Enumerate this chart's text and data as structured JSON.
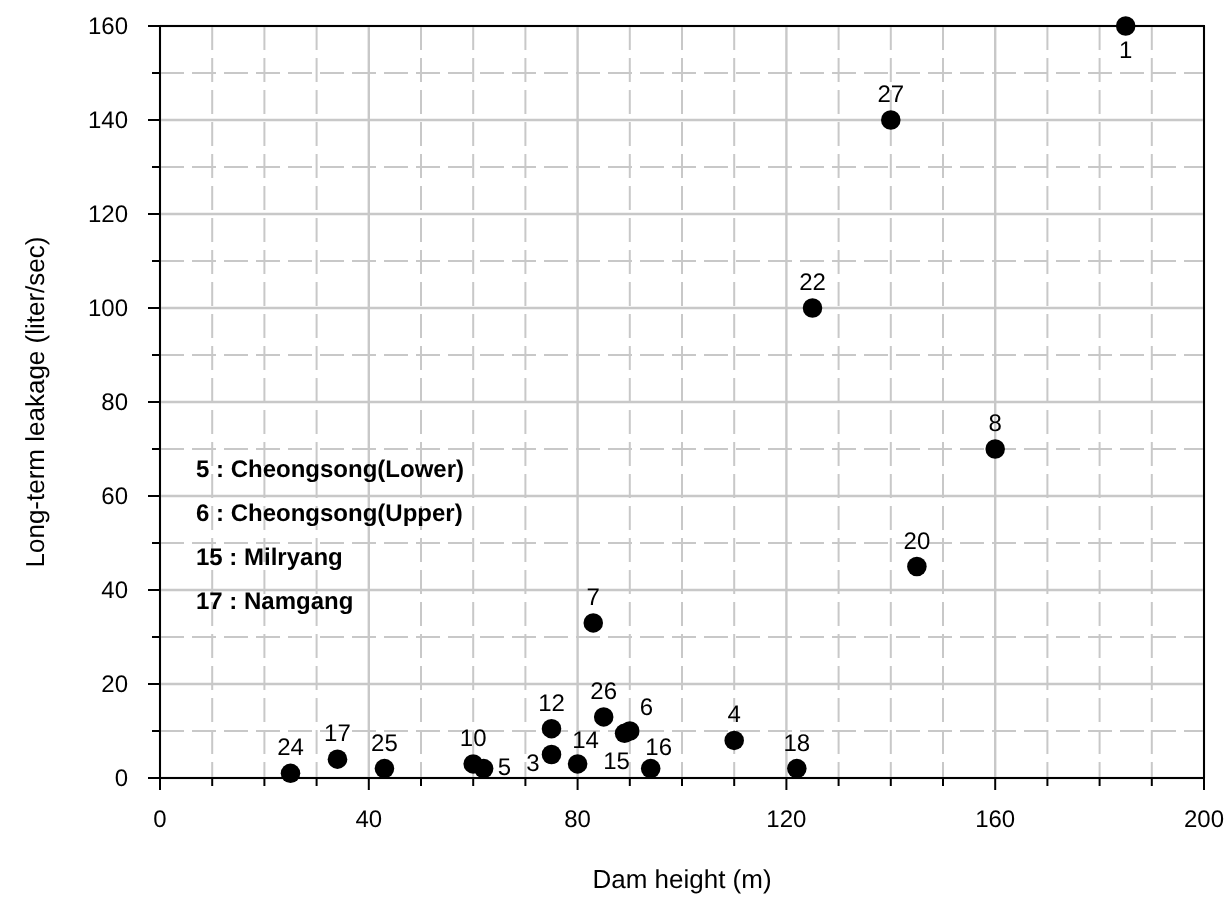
{
  "chart_data": {
    "type": "scatter",
    "xlabel": "Dam height (m)",
    "ylabel": "Long-term leakage (liter/sec)",
    "xlim": [
      0,
      200
    ],
    "ylim": [
      0,
      160
    ],
    "xticks": [
      0,
      {
        "value": 10,
        "label": null
      },
      {
        "value": 20,
        "label": null
      },
      {
        "value": 30,
        "label": null
      },
      40,
      {
        "value": 50,
        "label": null
      },
      {
        "value": 60,
        "label": null
      },
      {
        "value": 70,
        "label": null
      },
      80,
      {
        "value": 90,
        "label": null
      },
      {
        "value": 100,
        "label": null
      },
      {
        "value": 110,
        "label": null
      },
      120,
      {
        "value": 130,
        "label": null
      },
      {
        "value": 140,
        "label": null
      },
      {
        "value": 150,
        "label": null
      },
      160,
      {
        "value": 170,
        "label": null
      },
      {
        "value": 180,
        "label": null
      },
      {
        "value": 190,
        "label": null
      },
      200
    ],
    "yticks": [
      0,
      {
        "value": 10,
        "label": null
      },
      20,
      {
        "value": 30,
        "label": null
      },
      40,
      {
        "value": 50,
        "label": null
      },
      60,
      {
        "value": 70,
        "label": null
      },
      80,
      {
        "value": 90,
        "label": null
      },
      100,
      {
        "value": 110,
        "label": null
      },
      120,
      {
        "value": 130,
        "label": null
      },
      140,
      {
        "value": 150,
        "label": null
      },
      160
    ],
    "grid": true,
    "marker": "circle",
    "series": [
      {
        "color": "#000000",
        "x": [
          185,
          140,
          125,
          160,
          145,
          83,
          85,
          75,
          75,
          80,
          60,
          62,
          90,
          89,
          94,
          110,
          122,
          43,
          34,
          25
        ],
        "values": [
          160,
          140,
          100,
          70,
          45,
          33,
          13,
          10.5,
          5,
          3,
          3,
          2,
          10,
          9.5,
          2,
          8,
          2,
          2,
          4,
          1
        ]
      }
    ],
    "annotations": [
      {
        "text": "1",
        "x": 185,
        "y": 160
      },
      {
        "text": "27",
        "x": 140,
        "y": 140
      },
      {
        "text": "22",
        "x": 125,
        "y": 100
      },
      {
        "text": "8",
        "x": 160,
        "y": 70
      },
      {
        "text": "20",
        "x": 145,
        "y": 45
      },
      {
        "text": "7",
        "x": 83,
        "y": 33
      },
      {
        "text": "26",
        "x": 85,
        "y": 13
      },
      {
        "text": "12",
        "x": 75,
        "y": 10.5
      },
      {
        "text": "3",
        "x": 75,
        "y": 5
      },
      {
        "text": "14",
        "x": 80,
        "y": 3
      },
      {
        "text": "10",
        "x": 60,
        "y": 3
      },
      {
        "text": "5",
        "x": 62,
        "y": 2
      },
      {
        "text": "6",
        "x": 90,
        "y": 10
      },
      {
        "text": "15",
        "x": 89,
        "y": 9.5
      },
      {
        "text": "16",
        "x": 94,
        "y": 2
      },
      {
        "text": "4",
        "x": 110,
        "y": 8
      },
      {
        "text": "18",
        "x": 122,
        "y": 2
      },
      {
        "text": "25",
        "x": 43,
        "y": 2
      },
      {
        "text": "17",
        "x": 34,
        "y": 4
      },
      {
        "text": "24",
        "x": 25,
        "y": 1
      },
      "5 : Cheongsong(Lower)",
      "6 : Cheongsong(Upper)",
      "15 : Milryang",
      "17 : Namgang"
    ]
  }
}
